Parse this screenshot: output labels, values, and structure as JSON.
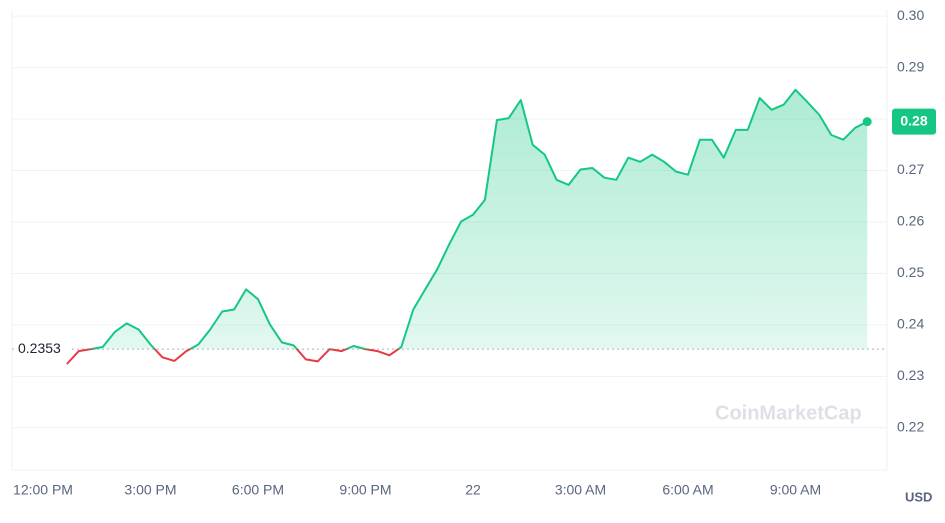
{
  "chart_data": {
    "type": "line",
    "categories": [
      "12:00 PM",
      null,
      null,
      null,
      null,
      null,
      null,
      null,
      null,
      "3:00 PM",
      null,
      null,
      null,
      null,
      null,
      null,
      null,
      null,
      "6:00 PM",
      null,
      null,
      null,
      null,
      null,
      null,
      null,
      null,
      "9:00 PM",
      null,
      null,
      null,
      null,
      null,
      null,
      null,
      null,
      "22",
      null,
      null,
      null,
      null,
      null,
      null,
      null,
      null,
      "3:00 AM",
      null,
      null,
      null,
      null,
      null,
      null,
      null,
      null,
      "6:00 AM",
      null,
      null,
      null,
      null,
      null,
      null,
      null,
      null,
      "9:00 AM",
      null,
      null,
      null,
      null,
      null,
      null
    ],
    "values": [
      null,
      null,
      0.2324,
      0.2349,
      0.2353,
      0.2357,
      0.2386,
      0.2403,
      0.2391,
      0.2362,
      0.2337,
      0.233,
      0.2349,
      0.2362,
      0.2391,
      0.2426,
      0.243,
      0.2469,
      0.245,
      0.2401,
      0.2366,
      0.236,
      0.2333,
      0.2329,
      0.2353,
      0.2349,
      0.2359,
      0.2353,
      0.2349,
      0.2341,
      0.2357,
      0.243,
      0.2469,
      0.2508,
      0.2556,
      0.2601,
      0.2614,
      0.2643,
      0.2798,
      0.2802,
      0.2837,
      0.275,
      0.2731,
      0.2682,
      0.2672,
      0.2702,
      0.2705,
      0.2686,
      0.2682,
      0.2725,
      0.2717,
      0.2731,
      0.2717,
      0.2698,
      0.2692,
      0.276,
      0.276,
      0.2725,
      0.2779,
      0.2779,
      0.2841,
      0.2818,
      0.2828,
      0.2857,
      0.2833,
      0.2808,
      0.2769,
      0.276,
      0.2783,
      0.2795
    ],
    "baseline": 0.2353,
    "price_badge": "0.28",
    "up_color": "#16c784",
    "down_color": "#ea3943",
    "ylim": [
      0.2118,
      0.3012
    ],
    "yticks": [
      {
        "value": 0.3,
        "label": "0.30"
      },
      0.29,
      0.28,
      0.27,
      0.26,
      0.25,
      0.24,
      0.23,
      0.22
    ],
    "y_unit": "USD",
    "watermark": "CoinMarketCap",
    "grid": true
  }
}
